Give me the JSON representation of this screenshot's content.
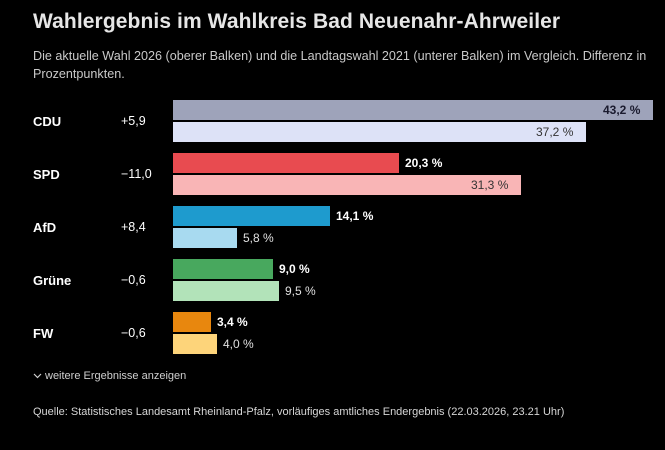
{
  "chart_data": {
    "type": "bar",
    "title": "Wahlergebnis im Wahlkreis Bad Neuenahr-Ahrweiler",
    "subtitle": "Die aktuelle Wahl 2026 (oberer Balken) und die Landtagswahl 2021 (unterer Balken) im Vergleich. Differenz in Prozentpunkten.",
    "categories": [
      "CDU",
      "SPD",
      "AfD",
      "Grüne",
      "FW"
    ],
    "differences": [
      "+5,9",
      "−11,0",
      "+8,4",
      "−0,6",
      "−0,6"
    ],
    "series": [
      {
        "name": "2026",
        "values": [
          43.2,
          20.3,
          14.1,
          9.0,
          3.4
        ],
        "labels": [
          "43,2 %",
          "20,3 %",
          "14,1 %",
          "9,0 %",
          "3,4 %"
        ],
        "colors": [
          "#9ea3ba",
          "#e84b50",
          "#1e9bce",
          "#48a85e",
          "#e8870e"
        ]
      },
      {
        "name": "2021",
        "values": [
          37.2,
          31.3,
          5.8,
          9.5,
          4.0
        ],
        "labels": [
          "37,2 %",
          "31,3 %",
          "5,8 %",
          "9,5 %",
          "4,0 %"
        ],
        "colors": [
          "#dde2f7",
          "#f9b5b6",
          "#a8daf0",
          "#b2e3b9",
          "#fdd47a"
        ]
      }
    ],
    "xlim": [
      0,
      43.2
    ]
  },
  "more_label": "weitere Ergebnisse anzeigen",
  "source": "Quelle: Statistisches Landesamt Rheinland-Pfalz, vorläufiges amtliches Endergebnis (22.03.2026, 23.21 Uhr)"
}
